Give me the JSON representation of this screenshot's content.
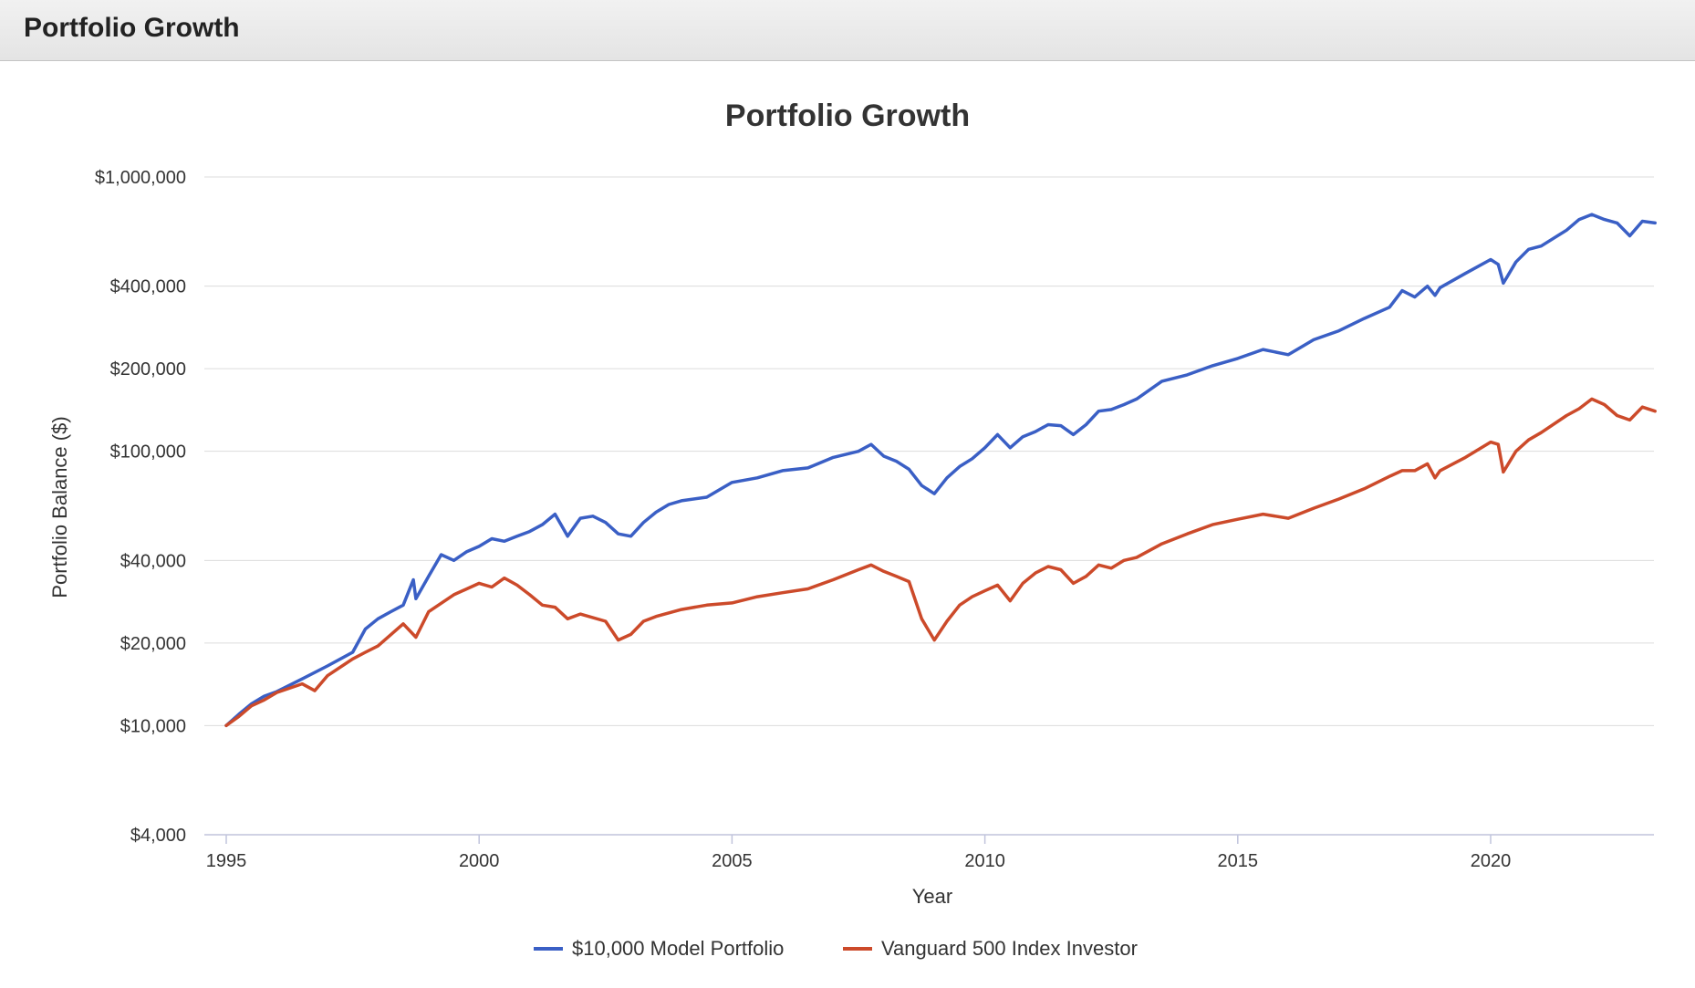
{
  "panel": {
    "title": "Portfolio Growth"
  },
  "chart_data": {
    "type": "line",
    "title": "Portfolio Growth",
    "xlabel": "Year",
    "ylabel": "Portfolio Balance ($)",
    "yscale": "log",
    "ylim": [
      4000,
      1000000
    ],
    "xlim": [
      1995.0,
      2023.5
    ],
    "x_ticks": [
      1995,
      2000,
      2005,
      2010,
      2015,
      2020
    ],
    "x_tick_labels": [
      "1995",
      "2000",
      "2005",
      "2010",
      "2015",
      "2020"
    ],
    "y_ticks": [
      4000,
      10000,
      20000,
      40000,
      100000,
      200000,
      400000,
      1000000
    ],
    "y_tick_labels": [
      "$4,000",
      "$10,000",
      "$20,000",
      "$40,000",
      "$100,000",
      "$200,000",
      "$400,000",
      "$1,000,000"
    ],
    "grid": "horizontal",
    "legend_position": "bottom",
    "series": [
      {
        "name": "$10,000 Model Portfolio",
        "color": "#3a5fc5",
        "points": [
          [
            1995.0,
            10000
          ],
          [
            1995.25,
            11000
          ],
          [
            1995.5,
            12000
          ],
          [
            1995.75,
            12800
          ],
          [
            1996.0,
            13300
          ],
          [
            1996.5,
            14800
          ],
          [
            1997.0,
            16500
          ],
          [
            1997.5,
            18500
          ],
          [
            1997.75,
            22500
          ],
          [
            1998.0,
            24500
          ],
          [
            1998.25,
            26000
          ],
          [
            1998.5,
            27500
          ],
          [
            1998.7,
            34000
          ],
          [
            1998.75,
            29000
          ],
          [
            1999.0,
            35000
          ],
          [
            1999.25,
            42000
          ],
          [
            1999.5,
            40000
          ],
          [
            1999.75,
            43000
          ],
          [
            2000.0,
            45000
          ],
          [
            2000.25,
            48000
          ],
          [
            2000.5,
            47000
          ],
          [
            2000.75,
            49000
          ],
          [
            2001.0,
            51000
          ],
          [
            2001.25,
            54000
          ],
          [
            2001.5,
            59000
          ],
          [
            2001.75,
            49000
          ],
          [
            2002.0,
            57000
          ],
          [
            2002.25,
            58000
          ],
          [
            2002.5,
            55000
          ],
          [
            2002.75,
            50000
          ],
          [
            2003.0,
            49000
          ],
          [
            2003.25,
            55000
          ],
          [
            2003.5,
            60000
          ],
          [
            2003.75,
            64000
          ],
          [
            2004.0,
            66000
          ],
          [
            2004.5,
            68000
          ],
          [
            2005.0,
            77000
          ],
          [
            2005.5,
            80000
          ],
          [
            2006.0,
            85000
          ],
          [
            2006.5,
            87000
          ],
          [
            2007.0,
            95000
          ],
          [
            2007.5,
            100000
          ],
          [
            2007.75,
            106000
          ],
          [
            2008.0,
            96000
          ],
          [
            2008.25,
            92000
          ],
          [
            2008.5,
            86000
          ],
          [
            2008.75,
            75000
          ],
          [
            2009.0,
            70000
          ],
          [
            2009.25,
            80000
          ],
          [
            2009.5,
            88000
          ],
          [
            2009.75,
            94000
          ],
          [
            2010.0,
            103000
          ],
          [
            2010.25,
            115000
          ],
          [
            2010.5,
            103000
          ],
          [
            2010.75,
            113000
          ],
          [
            2011.0,
            118000
          ],
          [
            2011.25,
            125000
          ],
          [
            2011.5,
            124000
          ],
          [
            2011.75,
            115000
          ],
          [
            2012.0,
            125000
          ],
          [
            2012.25,
            140000
          ],
          [
            2012.5,
            142000
          ],
          [
            2012.75,
            148000
          ],
          [
            2013.0,
            155000
          ],
          [
            2013.5,
            180000
          ],
          [
            2014.0,
            190000
          ],
          [
            2014.5,
            205000
          ],
          [
            2015.0,
            218000
          ],
          [
            2015.5,
            235000
          ],
          [
            2016.0,
            225000
          ],
          [
            2016.5,
            255000
          ],
          [
            2017.0,
            275000
          ],
          [
            2017.5,
            305000
          ],
          [
            2018.0,
            335000
          ],
          [
            2018.25,
            385000
          ],
          [
            2018.5,
            365000
          ],
          [
            2018.75,
            400000
          ],
          [
            2018.9,
            370000
          ],
          [
            2019.0,
            395000
          ],
          [
            2019.5,
            445000
          ],
          [
            2020.0,
            500000
          ],
          [
            2020.15,
            480000
          ],
          [
            2020.25,
            410000
          ],
          [
            2020.5,
            490000
          ],
          [
            2020.75,
            545000
          ],
          [
            2021.0,
            560000
          ],
          [
            2021.5,
            640000
          ],
          [
            2021.75,
            700000
          ],
          [
            2022.0,
            730000
          ],
          [
            2022.25,
            700000
          ],
          [
            2022.5,
            680000
          ],
          [
            2022.75,
            610000
          ],
          [
            2023.0,
            690000
          ],
          [
            2023.25,
            680000
          ]
        ]
      },
      {
        "name": "Vanguard 500 Index Investor",
        "color": "#cc4a2a",
        "points": [
          [
            1995.0,
            10000
          ],
          [
            1995.25,
            10800
          ],
          [
            1995.5,
            11800
          ],
          [
            1995.75,
            12400
          ],
          [
            1996.0,
            13200
          ],
          [
            1996.5,
            14200
          ],
          [
            1996.75,
            13400
          ],
          [
            1997.0,
            15200
          ],
          [
            1997.5,
            17500
          ],
          [
            1997.75,
            18500
          ],
          [
            1998.0,
            19500
          ],
          [
            1998.5,
            23500
          ],
          [
            1998.75,
            21000
          ],
          [
            1999.0,
            26000
          ],
          [
            1999.5,
            30000
          ],
          [
            2000.0,
            33000
          ],
          [
            2000.25,
            32000
          ],
          [
            2000.5,
            34500
          ],
          [
            2000.75,
            32500
          ],
          [
            2001.0,
            30000
          ],
          [
            2001.25,
            27500
          ],
          [
            2001.5,
            27000
          ],
          [
            2001.75,
            24500
          ],
          [
            2002.0,
            25500
          ],
          [
            2002.5,
            24000
          ],
          [
            2002.75,
            20500
          ],
          [
            2003.0,
            21500
          ],
          [
            2003.25,
            24000
          ],
          [
            2003.5,
            25000
          ],
          [
            2004.0,
            26500
          ],
          [
            2004.5,
            27500
          ],
          [
            2005.0,
            28000
          ],
          [
            2005.5,
            29500
          ],
          [
            2006.0,
            30500
          ],
          [
            2006.5,
            31500
          ],
          [
            2007.0,
            34000
          ],
          [
            2007.5,
            37000
          ],
          [
            2007.75,
            38500
          ],
          [
            2008.0,
            36500
          ],
          [
            2008.25,
            35000
          ],
          [
            2008.5,
            33500
          ],
          [
            2008.75,
            24500
          ],
          [
            2009.0,
            20500
          ],
          [
            2009.25,
            24000
          ],
          [
            2009.5,
            27500
          ],
          [
            2009.75,
            29500
          ],
          [
            2010.0,
            31000
          ],
          [
            2010.25,
            32500
          ],
          [
            2010.5,
            28500
          ],
          [
            2010.75,
            33000
          ],
          [
            2011.0,
            36000
          ],
          [
            2011.25,
            38000
          ],
          [
            2011.5,
            37000
          ],
          [
            2011.75,
            33000
          ],
          [
            2012.0,
            35000
          ],
          [
            2012.25,
            38500
          ],
          [
            2012.5,
            37500
          ],
          [
            2012.75,
            40000
          ],
          [
            2013.0,
            41000
          ],
          [
            2013.5,
            46000
          ],
          [
            2014.0,
            50000
          ],
          [
            2014.5,
            54000
          ],
          [
            2015.0,
            56500
          ],
          [
            2015.5,
            59000
          ],
          [
            2016.0,
            57000
          ],
          [
            2016.5,
            62000
          ],
          [
            2017.0,
            67000
          ],
          [
            2017.5,
            73000
          ],
          [
            2018.0,
            81000
          ],
          [
            2018.25,
            85000
          ],
          [
            2018.5,
            85000
          ],
          [
            2018.75,
            90000
          ],
          [
            2018.9,
            80000
          ],
          [
            2019.0,
            85000
          ],
          [
            2019.5,
            95000
          ],
          [
            2020.0,
            108000
          ],
          [
            2020.15,
            106000
          ],
          [
            2020.25,
            84000
          ],
          [
            2020.5,
            100000
          ],
          [
            2020.75,
            110000
          ],
          [
            2021.0,
            117000
          ],
          [
            2021.5,
            135000
          ],
          [
            2021.75,
            143000
          ],
          [
            2022.0,
            155000
          ],
          [
            2022.25,
            148000
          ],
          [
            2022.5,
            135000
          ],
          [
            2022.75,
            130000
          ],
          [
            2023.0,
            145000
          ],
          [
            2023.25,
            140000
          ]
        ]
      }
    ]
  }
}
